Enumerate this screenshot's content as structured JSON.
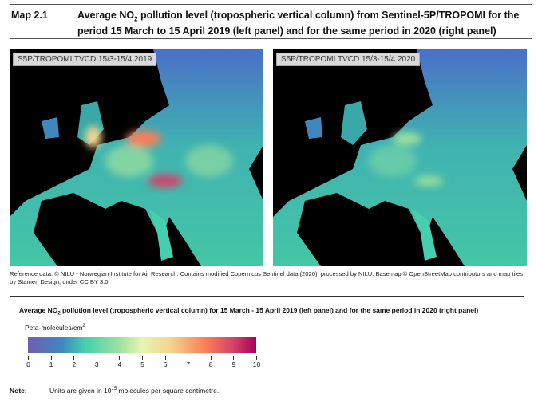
{
  "header": {
    "map_number": "Map 2.1",
    "title_pre": "Average NO",
    "title_sub": "2",
    "title_post": " pollution level (tropospheric vertical column) from Sentinel-5P/TROPOMI for the period 15 March to 15 April 2019 (left panel) and for the same period in 2020 (right panel)"
  },
  "panels": [
    {
      "label": "S5P/TROPOMI TVCD 15/3-15/4 2019"
    },
    {
      "label": "S5P/TROPOMI TVCD 15/3-15/4 2020"
    }
  ],
  "reference": "Reference data: © NILU - Norwegian Institute for Air Research. Contains modified Copernicus Sentinel data (2020), processed by NILU. Basemap © OpenStreetMap contributors and map tiles by Stamen Design, under CC BY 3.0.",
  "legend": {
    "title_pre": "Average NO",
    "title_sub": "2",
    "title_post": " pollution level (tropospheric vertical column) for 15 March - 15 April 2019 (left panel) and for the same period in 2020 (right panel)",
    "unit": "Peta-molecules/cm",
    "unit_sup": "2",
    "ticks": [
      "0",
      "1",
      "2",
      "3",
      "4",
      "5",
      "6",
      "7",
      "8",
      "9",
      "10"
    ],
    "colors": [
      "#6f5fb0",
      "#3e88c0",
      "#45cfae",
      "#e6f5b0",
      "#fb7d58",
      "#a8005b"
    ]
  },
  "note": {
    "label": "Note:",
    "text_pre": "Units are given in 10",
    "text_sup": "15",
    "text_post": " molecules per square centimetre."
  }
}
